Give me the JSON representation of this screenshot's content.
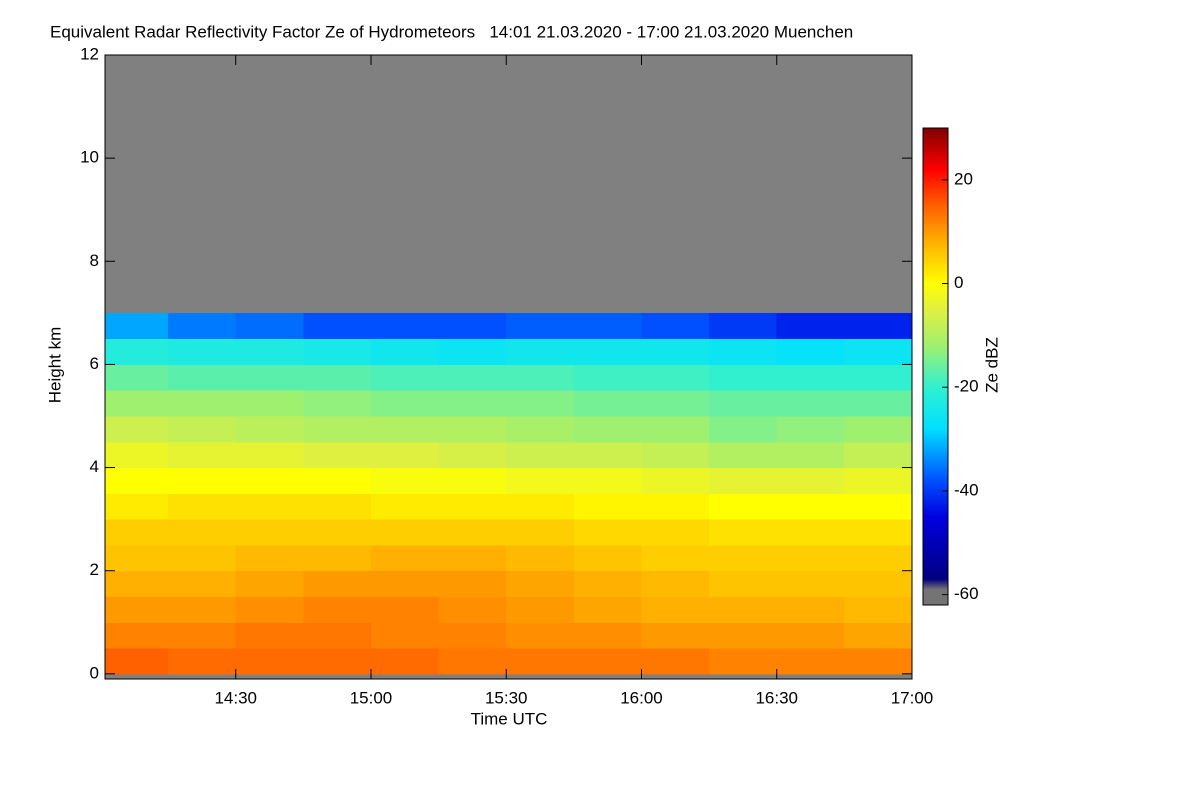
{
  "chart_data": {
    "type": "heatmap",
    "title": "Equivalent Radar Reflectivity Factor Ze of Hydrometeors   14:01 21.03.2020 - 17:00 21.03.2020 Muenchen",
    "xlabel": "Time UTC",
    "ylabel": "Height km",
    "colorbar_label": "Ze dBZ",
    "x": [
      14.0167,
      14.25,
      14.5,
      14.75,
      15.0,
      15.25,
      15.5,
      15.75,
      16.0,
      16.25,
      16.5,
      16.75,
      17.0
    ],
    "y": [
      0,
      0.5,
      1.0,
      1.5,
      2.0,
      2.5,
      3.0,
      3.5,
      4.0,
      4.5,
      5.0,
      5.5,
      6.0,
      6.5,
      7.0
    ],
    "z": [
      [
        15,
        14,
        14,
        14,
        14,
        13,
        13,
        13,
        13,
        12,
        12,
        12
      ],
      [
        12,
        12,
        13,
        13,
        12,
        12,
        11,
        11,
        10,
        10,
        10,
        9
      ],
      [
        10,
        10,
        11,
        12,
        12,
        11,
        10,
        9,
        8,
        8,
        8,
        7
      ],
      [
        8,
        8,
        9,
        10,
        10,
        10,
        9,
        8,
        7,
        6,
        6,
        6
      ],
      [
        6,
        6,
        7,
        7,
        8,
        8,
        7,
        6,
        5,
        5,
        5,
        5
      ],
      [
        5,
        5,
        5,
        5,
        5,
        5,
        5,
        4,
        4,
        3,
        3,
        3
      ],
      [
        2,
        3,
        3,
        3,
        2,
        2,
        2,
        1,
        1,
        0,
        0,
        0
      ],
      [
        0,
        0,
        0,
        0,
        -1,
        -1,
        -2,
        -2,
        -3,
        -4,
        -4,
        -3
      ],
      [
        -3,
        -4,
        -4,
        -5,
        -5,
        -6,
        -7,
        -7,
        -8,
        -10,
        -10,
        -8
      ],
      [
        -7,
        -8,
        -9,
        -10,
        -10,
        -10,
        -11,
        -12,
        -12,
        -14,
        -13,
        -12
      ],
      [
        -12,
        -12,
        -12,
        -13,
        -14,
        -14,
        -14,
        -15,
        -15,
        -16,
        -16,
        -16
      ],
      [
        -16,
        -17,
        -17,
        -17,
        -18,
        -18,
        -18,
        -19,
        -19,
        -20,
        -20,
        -20
      ],
      [
        -22,
        -23,
        -23,
        -24,
        -25,
        -26,
        -25,
        -25,
        -25,
        -26,
        -27,
        -26
      ],
      [
        -32,
        -35,
        -36,
        -38,
        -38,
        -38,
        -37,
        -37,
        -38,
        -40,
        -42,
        -42
      ]
    ],
    "xlim": [
      14.0167,
      17.0
    ],
    "xticks": [
      {
        "value": 14.5,
        "label": "14:30"
      },
      {
        "value": 15.0,
        "label": "15:00"
      },
      {
        "value": 15.5,
        "label": "15:30"
      },
      {
        "value": 16.0,
        "label": "16:00"
      },
      {
        "value": 16.5,
        "label": "16:30"
      },
      {
        "value": 17.0,
        "label": "17:00"
      }
    ],
    "ylim": [
      -0.1,
      12.0
    ],
    "yticks": [
      0,
      2,
      4,
      6,
      8,
      10,
      12
    ],
    "zlim": [
      -62,
      30
    ],
    "zticks": [
      -60,
      -40,
      -20,
      0,
      20
    ],
    "missing_color": "#808080",
    "colormap": [
      [
        -62,
        "#747474"
      ],
      [
        -59,
        "#747474"
      ],
      [
        -57,
        "#00007f"
      ],
      [
        -45,
        "#0000e0"
      ],
      [
        -38,
        "#0050ff"
      ],
      [
        -28,
        "#00e0ff"
      ],
      [
        -20,
        "#30f0d0"
      ],
      [
        -12,
        "#a0f070"
      ],
      [
        -5,
        "#e0f040"
      ],
      [
        0,
        "#ffff00"
      ],
      [
        8,
        "#ffb000"
      ],
      [
        15,
        "#ff6000"
      ],
      [
        22,
        "#ff0000"
      ],
      [
        30,
        "#800000"
      ]
    ]
  }
}
